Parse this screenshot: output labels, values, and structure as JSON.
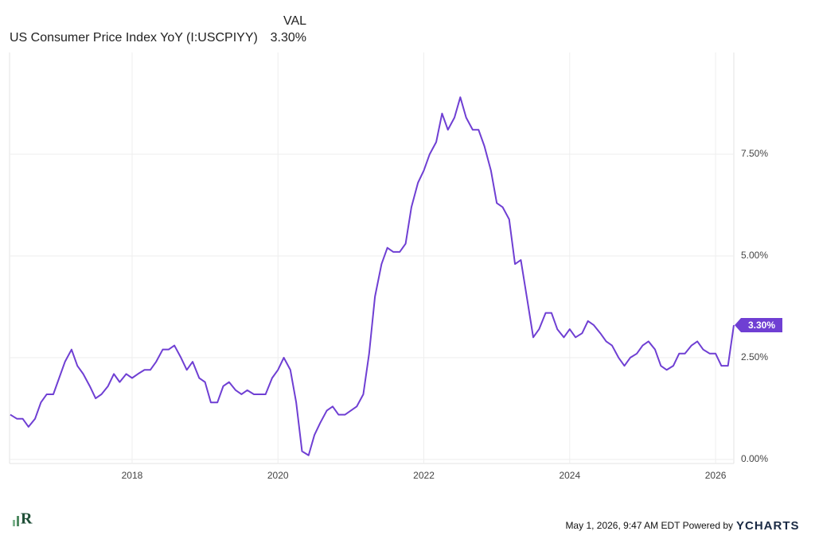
{
  "header": {
    "value_heading": "VAL"
  },
  "footer": {
    "timestamp": "May 1, 2026, 9:47 AM EDT Powered by",
    "brand": "YCHARTS"
  },
  "chart_data": {
    "type": "line",
    "x": [
      2016.33,
      2016.42,
      2016.5,
      2016.58,
      2016.67,
      2016.75,
      2016.83,
      2016.92,
      2017.0,
      2017.08,
      2017.17,
      2017.25,
      2017.33,
      2017.42,
      2017.5,
      2017.58,
      2017.67,
      2017.75,
      2017.83,
      2017.92,
      2018.0,
      2018.08,
      2018.17,
      2018.25,
      2018.33,
      2018.42,
      2018.5,
      2018.58,
      2018.67,
      2018.75,
      2018.83,
      2018.92,
      2019.0,
      2019.08,
      2019.17,
      2019.25,
      2019.33,
      2019.42,
      2019.5,
      2019.58,
      2019.67,
      2019.75,
      2019.83,
      2019.92,
      2020.0,
      2020.08,
      2020.17,
      2020.25,
      2020.33,
      2020.42,
      2020.5,
      2020.58,
      2020.67,
      2020.75,
      2020.83,
      2020.92,
      2021.0,
      2021.08,
      2021.17,
      2021.25,
      2021.33,
      2021.42,
      2021.5,
      2021.58,
      2021.67,
      2021.75,
      2021.83,
      2021.92,
      2022.0,
      2022.08,
      2022.17,
      2022.25,
      2022.33,
      2022.42,
      2022.5,
      2022.58,
      2022.67,
      2022.75,
      2022.83,
      2022.92,
      2023.0,
      2023.08,
      2023.17,
      2023.25,
      2023.33,
      2023.42,
      2023.5,
      2023.58,
      2023.67,
      2023.75,
      2023.83,
      2023.92,
      2024.0,
      2024.08,
      2024.17,
      2024.25,
      2024.33,
      2024.42,
      2024.5,
      2024.58,
      2024.67,
      2024.75,
      2024.83,
      2024.92,
      2025.0,
      2025.08,
      2025.17,
      2025.25,
      2025.33,
      2025.42,
      2025.5,
      2025.58,
      2025.67,
      2025.75,
      2025.83,
      2025.92,
      2026.0,
      2026.08,
      2026.17,
      2026.25
    ],
    "series": [
      {
        "name": "US Consumer Price Index YoY (I:USCPIYY)",
        "color": "#6f3fd3",
        "latest": {
          "value": 3.3,
          "label": "3.30%"
        },
        "values": [
          1.1,
          1.0,
          1.0,
          0.8,
          1.0,
          1.4,
          1.6,
          1.6,
          2.0,
          2.4,
          2.7,
          2.3,
          2.1,
          1.8,
          1.5,
          1.6,
          1.8,
          2.1,
          1.9,
          2.1,
          2.0,
          2.1,
          2.2,
          2.2,
          2.4,
          2.7,
          2.7,
          2.8,
          2.5,
          2.2,
          2.4,
          2.0,
          1.9,
          1.4,
          1.4,
          1.8,
          1.9,
          1.7,
          1.6,
          1.7,
          1.6,
          1.6,
          1.6,
          2.0,
          2.2,
          2.5,
          2.2,
          1.4,
          0.2,
          0.1,
          0.6,
          0.9,
          1.2,
          1.3,
          1.1,
          1.1,
          1.2,
          1.3,
          1.6,
          2.6,
          4.0,
          4.8,
          5.2,
          5.1,
          5.1,
          5.3,
          6.2,
          6.8,
          7.1,
          7.5,
          7.8,
          8.5,
          8.1,
          8.4,
          8.9,
          8.4,
          8.1,
          8.1,
          7.7,
          7.1,
          6.3,
          6.2,
          5.9,
          4.8,
          4.9,
          3.9,
          3.0,
          3.2,
          3.6,
          3.6,
          3.2,
          3.0,
          3.2,
          3.0,
          3.1,
          3.4,
          3.3,
          3.1,
          2.9,
          2.8,
          2.5,
          2.3,
          2.5,
          2.6,
          2.8,
          2.9,
          2.7,
          2.3,
          2.2,
          2.3,
          2.6,
          2.6,
          2.8,
          2.9,
          2.7,
          2.6,
          2.6,
          2.3,
          2.3,
          3.3
        ]
      }
    ],
    "xlim": [
      2016.32,
      2026.25
    ],
    "xticks": [
      2018,
      2020,
      2022,
      2024,
      2026
    ],
    "ylim": [
      -0.1,
      10
    ],
    "yticks": [
      {
        "value": 0,
        "label": "0.00%"
      },
      {
        "value": 2.5,
        "label": "2.50%"
      },
      {
        "value": 5,
        "label": "5.00%"
      },
      {
        "value": 7.5,
        "label": "7.50%"
      }
    ],
    "grid": true
  }
}
